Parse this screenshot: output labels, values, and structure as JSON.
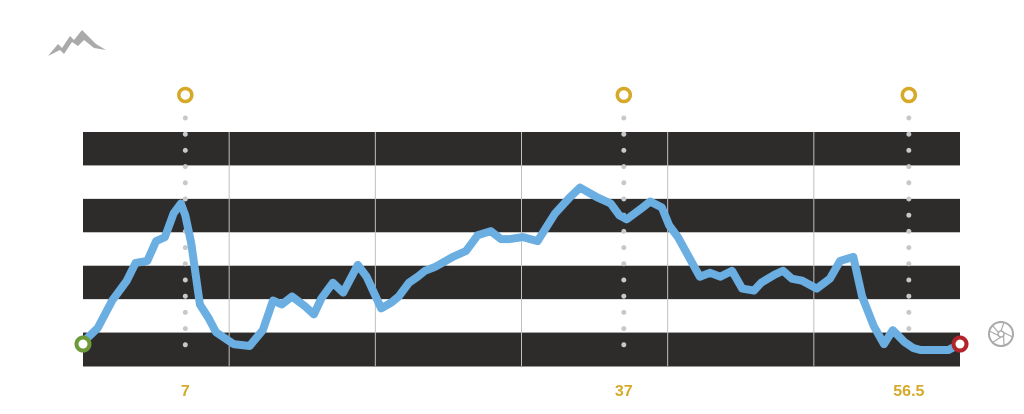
{
  "icons": {
    "mountain": "mountain-icon",
    "bike_wheel": "bicycle-wheel-icon"
  },
  "colors": {
    "profile_line": "#6aaee2",
    "band_dark": "#2d2c2b",
    "band_light": "#ffffff",
    "grid_line": "#bfbfbf",
    "marker_gold": "#d6a928",
    "dot_grey": "#c8c8c8",
    "start_green": "#6e9b3a",
    "finish_red": "#b3232a",
    "icon_grey": "#aaaaaa"
  },
  "chart_data": {
    "type": "area",
    "title": "",
    "xlabel": "",
    "ylabel": "",
    "grid": true,
    "xlim": [
      0,
      60
    ],
    "ylim": [
      0,
      100
    ],
    "bands": 7,
    "vertical_gridlines": [
      10,
      20,
      30,
      40,
      50
    ],
    "markers": [
      {
        "km": 7,
        "label": "7"
      },
      {
        "km": 37,
        "label": "37"
      },
      {
        "km": 56.5,
        "label": "56.5"
      }
    ],
    "start": {
      "km": 0,
      "elevation": 3
    },
    "finish": {
      "km": 60,
      "elevation": 3
    },
    "series": [
      {
        "x": [
          0,
          1,
          2,
          3,
          3.6,
          4.4,
          5,
          5.6,
          6.2,
          6.7,
          7,
          7.4,
          8,
          8.6,
          9.1,
          10.3,
          11.4,
          12.3,
          13,
          13.6,
          14.3,
          15.2,
          15.8,
          16.3,
          17.1,
          17.8,
          18.8,
          19.4,
          20.4,
          21.1,
          21.6,
          22.3,
          22.9,
          23.4,
          24.1,
          25.3,
          26.2,
          27,
          27.9,
          28.6,
          29.2,
          30.1,
          31.1,
          31.7,
          32.3,
          33.3,
          34,
          35.2,
          36.1,
          36.7,
          37.2,
          38.3,
          38.8,
          39.6,
          40.1,
          40.7,
          41.3,
          42.2,
          42.9,
          43.6,
          44.4,
          45.1,
          45.9,
          46.4,
          47.3,
          47.9,
          48.5,
          49.2,
          50.2,
          51.1,
          51.8,
          52.7,
          53.3,
          54.1,
          54.8,
          55.4,
          56.2,
          56.8,
          57.3,
          57.9,
          58.3,
          59.2,
          60
        ],
        "y": [
          4,
          11,
          25,
          35,
          44,
          45,
          55,
          57,
          69,
          74,
          68,
          54,
          23,
          16,
          9,
          3,
          2,
          10,
          25,
          23,
          27,
          22,
          18,
          26,
          34,
          29,
          43,
          37,
          21,
          24,
          27,
          34,
          37,
          40,
          42,
          47,
          50,
          58,
          60,
          56,
          56,
          57,
          55,
          62,
          69,
          77,
          82,
          77,
          74,
          68,
          66,
          72,
          75,
          72,
          63,
          57,
          49,
          37,
          39,
          37,
          40,
          31,
          30,
          34,
          38,
          40,
          36,
          35,
          31,
          36,
          45,
          47,
          27,
          12,
          3,
          10,
          4,
          1,
          0,
          0,
          0,
          0,
          3
        ]
      }
    ]
  }
}
